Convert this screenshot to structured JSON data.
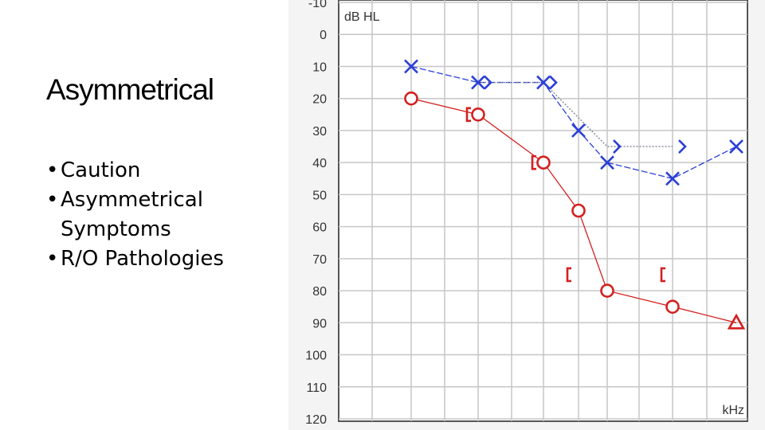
{
  "slide": {
    "title": "Asymmetrical",
    "bullets": [
      "Caution",
      "Asymmetrical Symptoms",
      "R/O Pathologies"
    ]
  },
  "chart_data": {
    "type": "line",
    "corner_label": "dB HL",
    "x_unit_label": "kHz",
    "y_inverted": true,
    "ylim": [
      -10,
      120
    ],
    "y_ticks": [
      -10,
      0,
      10,
      20,
      30,
      40,
      50,
      60,
      70,
      80,
      90,
      100,
      110,
      120
    ],
    "grid": true,
    "colors": {
      "left_ear": "#2b3fd6",
      "right_ear": "#d42020",
      "masked_line": "#8c8c9c"
    },
    "series": [
      {
        "color": "#2b3fd6",
        "points": [
          {
            "x": 0.25,
            "y": 10,
            "symbol": "cross"
          },
          {
            "x": 0.5,
            "y": 15,
            "symbol": "cross"
          },
          {
            "x": 1,
            "y": 15,
            "symbol": "cross"
          },
          {
            "x": 2,
            "y": 30,
            "symbol": "cross"
          },
          {
            "x": 3,
            "y": 40,
            "symbol": "cross"
          },
          {
            "x": 6,
            "y": 45,
            "symbol": "cross"
          },
          {
            "x": 8,
            "y": 35,
            "symbol": "cross"
          }
        ]
      },
      {
        "color": "#2b3fd6",
        "style": "dotted",
        "points": [
          {
            "x": 0.5,
            "y": 15,
            "symbol": "gt"
          },
          {
            "x": 1,
            "y": 15,
            "symbol": "gt"
          },
          {
            "x": 3,
            "y": 35,
            "symbol": "gt"
          },
          {
            "x": 6,
            "y": 35,
            "symbol": "gt"
          }
        ]
      },
      {
        "color": "#d42020",
        "points": [
          {
            "x": 0.25,
            "y": 20,
            "symbol": "circle"
          },
          {
            "x": 0.5,
            "y": 25,
            "symbol": "circle"
          },
          {
            "x": 1,
            "y": 40,
            "symbol": "circle"
          },
          {
            "x": 2,
            "y": 55,
            "symbol": "circle"
          },
          {
            "x": 3,
            "y": 80,
            "symbol": "circle"
          },
          {
            "x": 6,
            "y": 85,
            "symbol": "circle"
          },
          {
            "x": 8,
            "y": 90,
            "symbol": "triangle"
          }
        ]
      },
      {
        "color": "#d42020",
        "style": "unconnected",
        "points": [
          {
            "x": 0.5,
            "y": 25,
            "symbol": "bracket"
          },
          {
            "x": 1,
            "y": 40,
            "symbol": "bracket"
          },
          {
            "x": 2,
            "y": 75,
            "symbol": "bracket"
          },
          {
            "x": 6,
            "y": 75,
            "symbol": "bracket"
          }
        ]
      }
    ]
  }
}
